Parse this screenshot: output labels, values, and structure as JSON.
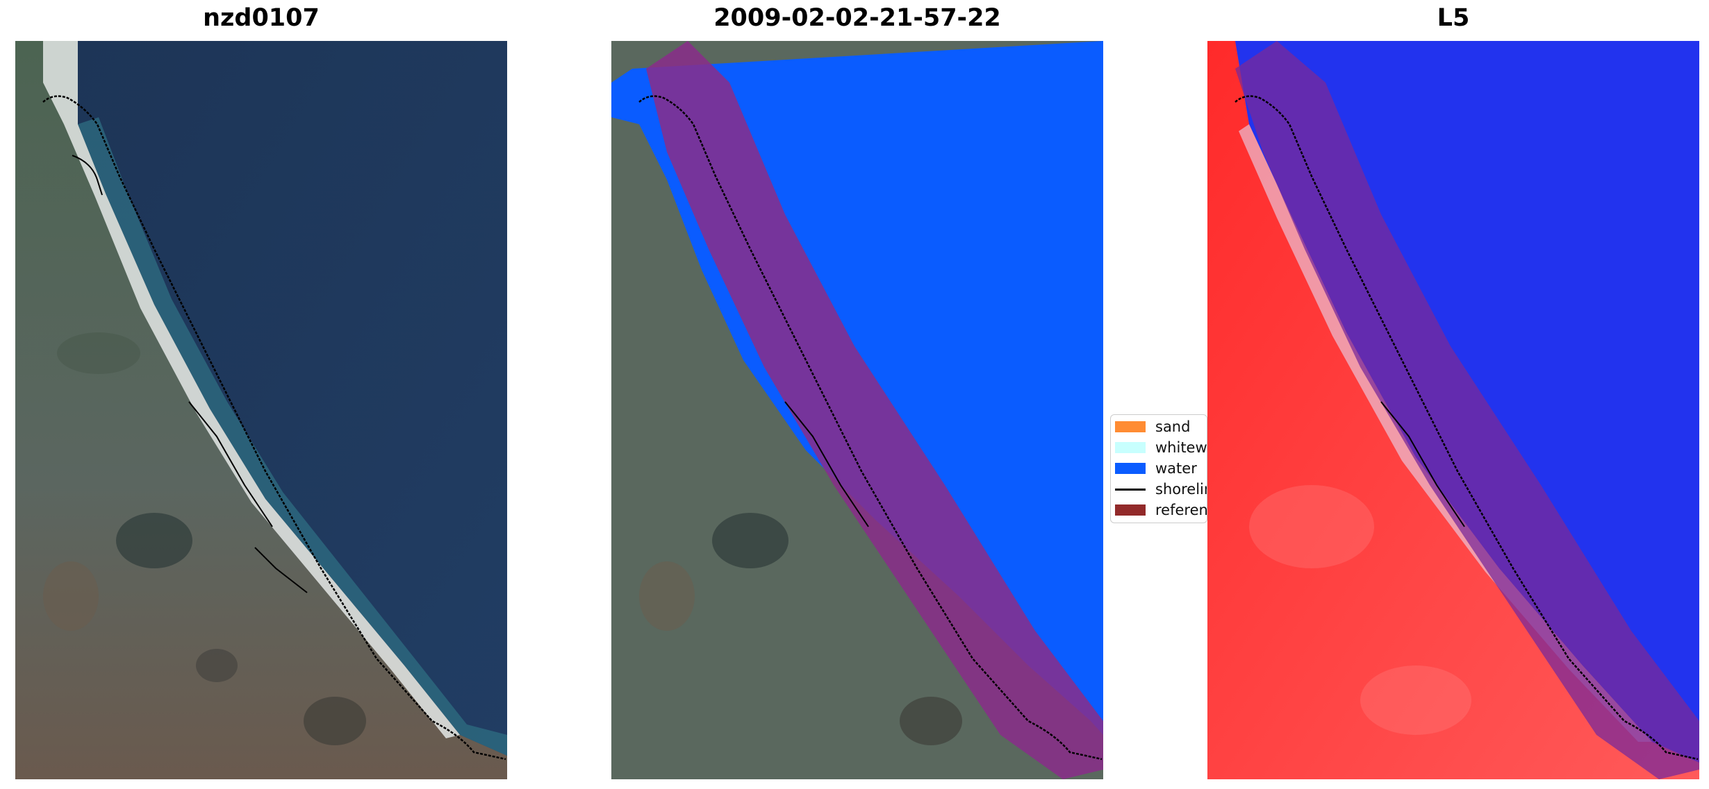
{
  "panels": [
    {
      "title": "nzd0107"
    },
    {
      "title": "2009-02-02-21-57-22"
    },
    {
      "title": "L5"
    }
  ],
  "legend": {
    "items": [
      {
        "label": "sand",
        "color": "#ff8c33"
      },
      {
        "label": "whitewater",
        "color": "#c8fffe"
      },
      {
        "label": "water",
        "color": "#0a5cff"
      },
      {
        "label": "shoreline",
        "color": "#000000"
      },
      {
        "label": "reference",
        "color": "#922a2a"
      }
    ]
  },
  "colors": {
    "ocean": "#1e3a5e",
    "land": "#55655a",
    "surf": "#e8ecec",
    "buffer": "#8a2d8a",
    "index_high": "#ff1f1f",
    "index_low": "#2233ee"
  }
}
